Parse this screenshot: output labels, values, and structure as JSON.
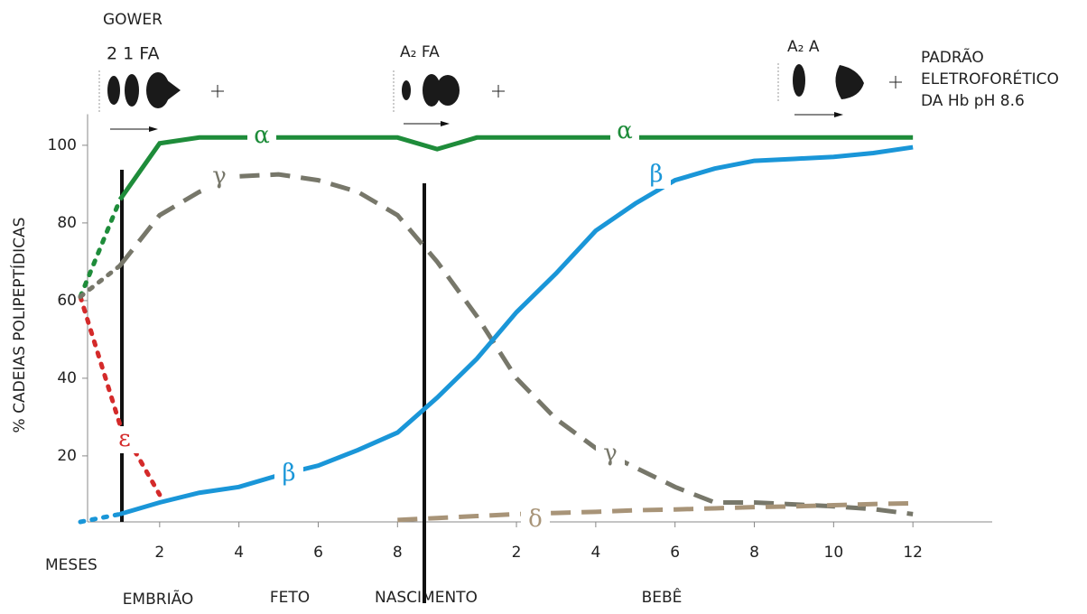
{
  "chart_data": {
    "type": "line",
    "y_label": "% CADEIAS POLIPEPTÍDICAS",
    "x_label": "MESES",
    "ylim": [
      3,
      108
    ],
    "yticks": [
      20,
      40,
      60,
      80,
      100
    ],
    "xlim": [
      0,
      23
    ],
    "xticks": [
      2,
      4,
      6,
      8,
      {
        "value": 11,
        "label": "2"
      },
      {
        "value": 13,
        "label": "4"
      },
      {
        "value": 15,
        "label": "6"
      },
      {
        "value": 17,
        "label": "8"
      },
      {
        "value": 19,
        "label": "10"
      },
      {
        "value": 21,
        "label": "12"
      }
    ],
    "periods": [
      "EMBRIÃO",
      "FETO",
      "NASCIMENTO",
      "BEBÊ"
    ],
    "electrophoresis": {
      "title": "GOWER",
      "bands": [
        "2 1 FA",
        "A₂  FA",
        "A₂   A"
      ],
      "caption": [
        "PADRÃO",
        "ELETROFORÉTICO",
        "DA Hb pH 8.6"
      ]
    },
    "x": [
      0,
      1,
      2,
      3,
      4,
      5,
      6,
      7,
      8,
      9,
      10,
      11,
      12,
      13,
      14,
      15,
      16,
      17,
      18,
      19,
      20,
      21
    ],
    "series": [
      {
        "name": "α",
        "color": "#1e8c3a",
        "dash": "solid",
        "values": [
          null,
          86,
          100.5,
          102,
          102,
          102,
          102,
          102,
          102,
          99,
          102,
          102,
          102,
          102,
          102,
          102,
          102,
          102,
          102,
          102,
          102,
          102
        ]
      },
      {
        "name": "γ",
        "color": "#77776a",
        "dash": "dashed",
        "values": [
          null,
          69,
          82,
          88,
          92,
          92.5,
          91,
          88,
          82,
          70,
          56,
          40,
          29.5,
          22,
          17,
          12,
          8,
          8,
          7.5,
          7,
          6.3,
          5
        ]
      },
      {
        "name": "β",
        "color": "#1a96d8",
        "dash": "solid",
        "values": [
          null,
          5,
          8,
          10.5,
          12,
          15,
          17.5,
          21.5,
          26,
          35,
          45,
          57,
          67,
          78,
          85,
          91,
          94,
          96,
          96.5,
          97,
          98,
          99.5
        ]
      },
      {
        "name": "ε",
        "color": "#d42a2a",
        "dash": "dotted",
        "values": [
          61,
          28,
          10,
          null,
          null,
          null,
          null,
          null,
          null,
          null,
          null,
          null,
          null,
          null,
          null,
          null,
          null,
          null,
          null,
          null,
          null,
          null
        ]
      },
      {
        "name": "δ",
        "color": "#a89478",
        "dash": "dashed",
        "values": [
          null,
          null,
          null,
          null,
          null,
          null,
          null,
          null,
          3.5,
          4,
          4.5,
          5,
          5.3,
          5.6,
          6,
          6.2,
          6.5,
          6.8,
          7,
          7.3,
          7.6,
          7.8
        ]
      },
      {
        "color": "#1e8c3a",
        "dash": "dotted",
        "values": [
          61,
          86,
          null,
          null,
          null,
          null,
          null,
          null,
          null,
          null,
          null,
          null,
          null,
          null,
          null,
          null,
          null,
          null,
          null,
          null,
          null,
          null
        ]
      },
      {
        "color": "#77776a",
        "dash": "dotted",
        "values": [
          61,
          69,
          null,
          null,
          null,
          null,
          null,
          null,
          null,
          null,
          null,
          null,
          null,
          null,
          null,
          null,
          null,
          null,
          null,
          null,
          null,
          null
        ]
      },
      {
        "color": "#1a96d8",
        "dash": "dotted",
        "values": [
          3,
          5,
          null,
          null,
          null,
          null,
          null,
          null,
          null,
          null,
          null,
          null,
          null,
          null,
          null,
          null,
          null,
          null,
          null,
          null,
          null,
          null
        ]
      }
    ]
  }
}
